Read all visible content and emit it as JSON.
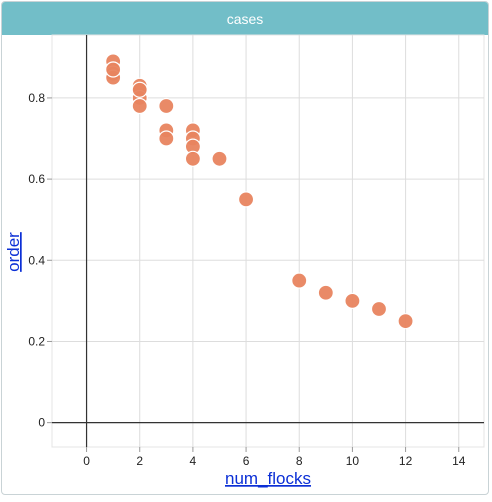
{
  "window": {
    "title": "cases"
  },
  "colors": {
    "header": "#72bec8",
    "point": "#e8845f",
    "point_stroke": "#ffffff",
    "grid": "#dddddd",
    "axis": "#333333",
    "link": "#0b2fd6"
  },
  "chart_data": {
    "type": "scatter",
    "title": "",
    "xlabel": "num_flocks",
    "ylabel": "order",
    "xlim": [
      -1.3,
      14.95
    ],
    "ylim": [
      -0.06,
      0.955
    ],
    "xticks": [
      0,
      2,
      4,
      6,
      8,
      10,
      12,
      14
    ],
    "yticks": [
      0,
      0.2,
      0.4,
      0.6,
      0.8
    ],
    "xtick_labels": [
      "0",
      "2",
      "4",
      "6",
      "8",
      "10",
      "12",
      "14"
    ],
    "ytick_labels": [
      "0",
      "0.2",
      "0.4",
      "0.6",
      "0.8"
    ],
    "grid": true,
    "points": [
      {
        "x": 1,
        "y": 0.89
      },
      {
        "x": 1,
        "y": 0.87
      },
      {
        "x": 1,
        "y": 0.86
      },
      {
        "x": 1,
        "y": 0.85
      },
      {
        "x": 1,
        "y": 0.87
      },
      {
        "x": 2,
        "y": 0.83
      },
      {
        "x": 2,
        "y": 0.82
      },
      {
        "x": 2,
        "y": 0.8
      },
      {
        "x": 2,
        "y": 0.78
      },
      {
        "x": 2,
        "y": 0.82
      },
      {
        "x": 3,
        "y": 0.78
      },
      {
        "x": 3,
        "y": 0.72
      },
      {
        "x": 3,
        "y": 0.7
      },
      {
        "x": 4,
        "y": 0.72
      },
      {
        "x": 4,
        "y": 0.7
      },
      {
        "x": 4,
        "y": 0.68
      },
      {
        "x": 4,
        "y": 0.65
      },
      {
        "x": 5,
        "y": 0.65
      },
      {
        "x": 6,
        "y": 0.55
      },
      {
        "x": 8,
        "y": 0.35
      },
      {
        "x": 9,
        "y": 0.32
      },
      {
        "x": 10,
        "y": 0.3
      },
      {
        "x": 11,
        "y": 0.28
      },
      {
        "x": 12,
        "y": 0.25
      }
    ]
  }
}
